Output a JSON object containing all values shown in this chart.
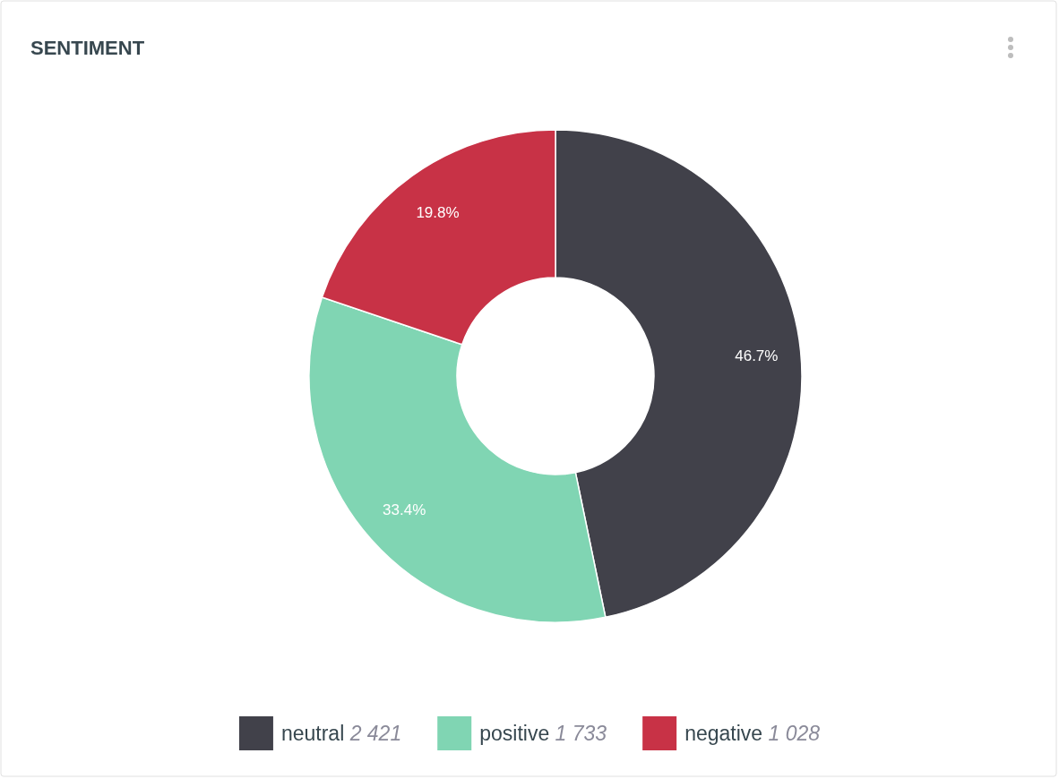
{
  "chart_data": {
    "type": "donut",
    "title": "SENTIMENT",
    "categories": [
      "neutral 2 421",
      "positive 1 733",
      "negative 1 028"
    ],
    "values": [
      46.7,
      33.4,
      19.8
    ],
    "colors": [
      "#41414a",
      "#80d5b3",
      "#c83246"
    ],
    "value_labels": [
      "46.7%",
      "33.4%",
      "19.8%"
    ],
    "legend": "bottom"
  }
}
